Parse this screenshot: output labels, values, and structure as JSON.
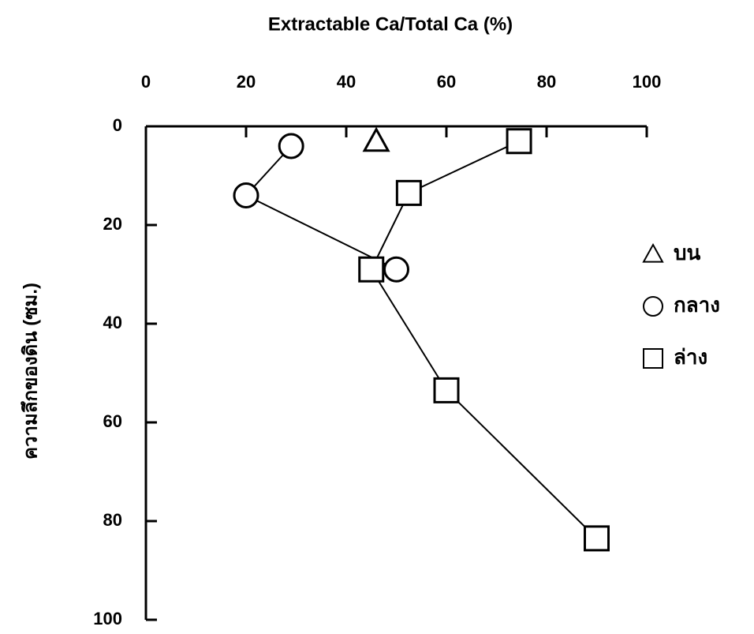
{
  "chart_data": {
    "type": "scatter",
    "title": "Extractable Ca/Total Ca (%)",
    "y_label": "ความลึกของดิน (ซม.)",
    "xaxis_position": "top",
    "xlim": [
      0,
      100
    ],
    "xticks": [
      0,
      20,
      40,
      60,
      80,
      100
    ],
    "ylim": [
      100,
      0
    ],
    "yticks": [
      0,
      20,
      40,
      60,
      80,
      100
    ],
    "legend_position": "right",
    "series": [
      {
        "name": "บน",
        "marker": "triangle",
        "color": "#000000",
        "connect": false,
        "x": [
          46
        ],
        "y": [
          3
        ]
      },
      {
        "name": "กลาง",
        "marker": "circle",
        "color": "#000000",
        "connect": true,
        "x": [
          29,
          20,
          50
        ],
        "y": [
          4,
          14,
          29
        ]
      },
      {
        "name": "ล่าง",
        "marker": "square",
        "color": "#000000",
        "connect": true,
        "x": [
          74.5,
          52.5,
          45,
          60,
          90
        ],
        "y": [
          3,
          13.5,
          29,
          53.5,
          83.5
        ]
      }
    ]
  }
}
